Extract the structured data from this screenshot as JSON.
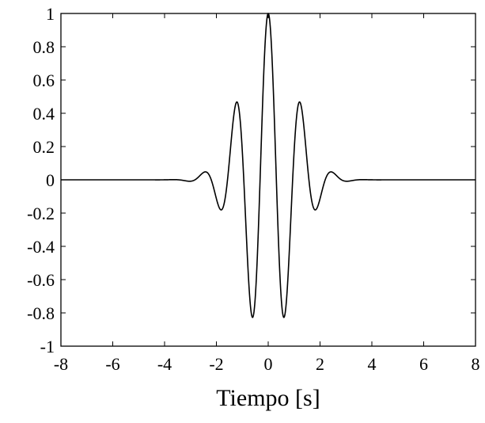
{
  "chart_data": {
    "type": "line",
    "title": "",
    "xlabel": "Tiempo [s]",
    "ylabel": "",
    "xlim": [
      -8,
      8
    ],
    "ylim": [
      -1,
      1
    ],
    "xticks": [
      "-8",
      "-6",
      "-4",
      "-2",
      "0",
      "2",
      "4",
      "6",
      "8"
    ],
    "yticks": [
      "1",
      "0.8",
      "0.6",
      "0.4",
      "0.2",
      "0",
      "-0.2",
      "-0.4",
      "-0.6",
      "-0.8",
      "-1"
    ],
    "grid": false,
    "legend": "none",
    "line_color": "#000000",
    "series": [
      {
        "function": "y = exp(-t^2 / 2) * cos(5 t)  (Morlet wavelet)",
        "x": [
          -8,
          -3.5,
          -3.0,
          -2.8,
          -2.5,
          -2.2,
          -1.9,
          -1.6,
          -1.26,
          -0.9,
          -0.63,
          -0.3,
          0,
          0.3,
          0.63,
          0.9,
          1.26,
          1.6,
          1.9,
          2.2,
          2.5,
          2.8,
          3.0,
          3.5,
          8
        ],
        "y": [
          0,
          0,
          -0.01,
          0.0,
          0.04,
          0.0,
          -0.18,
          -0.04,
          0.45,
          -0.16,
          -0.82,
          0.07,
          1.0,
          0.07,
          -0.82,
          -0.16,
          0.45,
          -0.04,
          -0.18,
          0.0,
          0.04,
          0.0,
          -0.01,
          0,
          0
        ]
      }
    ]
  }
}
